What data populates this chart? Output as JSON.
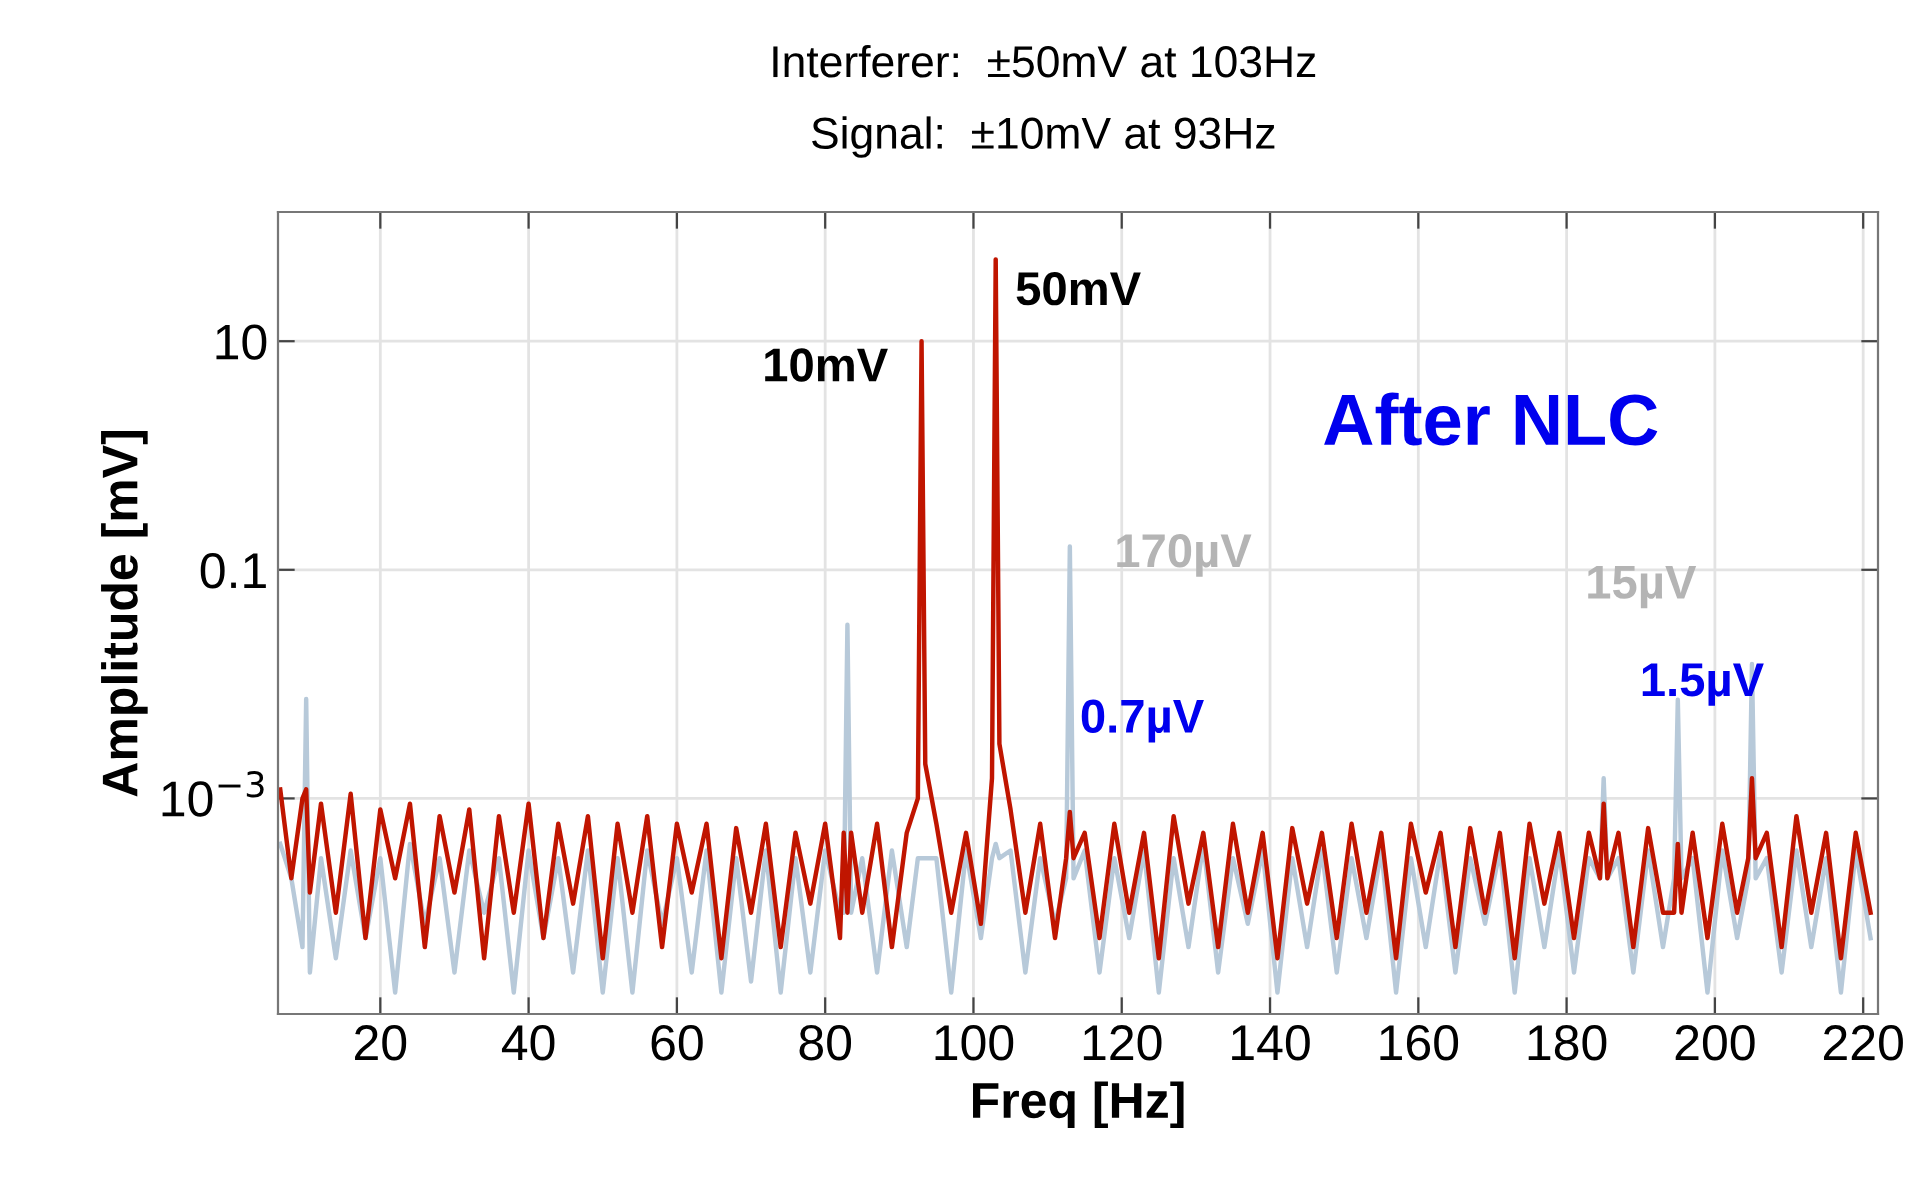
{
  "chart_data": {
    "type": "line",
    "title": "Interferer:  ±50mV at 103Hz",
    "subtitle": "Signal:  ±10mV at 93Hz",
    "xlabel": "Freq [Hz]",
    "ylabel": "Amplitude [mV]",
    "x": [
      6.5,
      8,
      9.5,
      10,
      10.5,
      12,
      14,
      16,
      18,
      20,
      22,
      24,
      26,
      28,
      30,
      32,
      34,
      36,
      38,
      40,
      42,
      44,
      46,
      48,
      50,
      52,
      54,
      56,
      58,
      60,
      62,
      64,
      66,
      68,
      70,
      72,
      74,
      76,
      78,
      80,
      82,
      82.5,
      83,
      83.5,
      85,
      87,
      89,
      91,
      92.5,
      93,
      93.5,
      95,
      97,
      99,
      101,
      102.5,
      103,
      103.5,
      105,
      107,
      109,
      111,
      112.5,
      113,
      113.5,
      115,
      117,
      119,
      121,
      123,
      125,
      127,
      129,
      131,
      133,
      135,
      137,
      139,
      141,
      143,
      145,
      147,
      149,
      151,
      153,
      155,
      157,
      159,
      161,
      163,
      165,
      167,
      169,
      171,
      173,
      175,
      177,
      179,
      181,
      183,
      184.5,
      185,
      185.5,
      187,
      189,
      191,
      193,
      194.5,
      195,
      195.5,
      197,
      199,
      201,
      203,
      204.5,
      205,
      205.5,
      207,
      209,
      211,
      213,
      215,
      217,
      219,
      221
    ],
    "series": [
      {
        "color": "#b7c9d9",
        "values": [
          0.0004,
          0.0002,
          5e-05,
          0.0074,
          3e-05,
          0.0003,
          4e-05,
          0.00035,
          6e-05,
          0.0003,
          2e-05,
          0.0004,
          8e-05,
          0.0003,
          3e-05,
          0.00035,
          0.0001,
          0.0003,
          2e-05,
          0.00035,
          6e-05,
          0.0003,
          3e-05,
          0.00035,
          2e-05,
          0.0003,
          2e-05,
          0.00035,
          8e-05,
          0.0003,
          3e-05,
          0.00035,
          2e-05,
          0.0003,
          2.5e-05,
          0.00035,
          2e-05,
          0.0003,
          3e-05,
          0.00035,
          0.0001,
          0.0001,
          0.033,
          0.0001,
          0.0003,
          3e-05,
          0.00035,
          5e-05,
          0.0003,
          0.0003,
          0.0003,
          0.0003,
          2e-05,
          0.00035,
          6e-05,
          0.0003,
          0.0004,
          0.0003,
          0.00035,
          3e-05,
          0.0003,
          8e-05,
          0.0002,
          0.16,
          0.0002,
          0.00035,
          3e-05,
          0.0003,
          6e-05,
          0.00035,
          2e-05,
          0.0003,
          5e-05,
          0.0004,
          3e-05,
          0.0003,
          8e-05,
          0.00035,
          2e-05,
          0.0003,
          5e-05,
          0.00035,
          3e-05,
          0.0003,
          6e-05,
          0.00035,
          2e-05,
          0.0003,
          5e-05,
          0.00035,
          3e-05,
          0.0003,
          8e-05,
          0.00035,
          2e-05,
          0.0003,
          5e-05,
          0.00035,
          3e-05,
          0.0003,
          0.0002,
          0.0015,
          0.0002,
          0.0003,
          3e-05,
          0.00035,
          5e-05,
          0.0002,
          0.0073,
          0.0002,
          0.0003,
          2e-05,
          0.00035,
          6e-05,
          0.0002,
          0.015,
          0.0002,
          0.0003,
          3e-05,
          0.00035,
          5e-05,
          0.0003,
          2e-05,
          0.00035,
          6e-05
        ]
      },
      {
        "color": "#c01500",
        "values": [
          0.0012,
          0.0002,
          0.001,
          0.0012,
          0.00015,
          0.0009,
          0.0001,
          0.0011,
          6e-05,
          0.0008,
          0.0002,
          0.0009,
          5e-05,
          0.0007,
          0.00015,
          0.0008,
          4e-05,
          0.0007,
          0.0001,
          0.0009,
          6e-05,
          0.0006,
          0.00012,
          0.0007,
          4e-05,
          0.0006,
          0.0001,
          0.0007,
          5e-05,
          0.0006,
          0.00015,
          0.0006,
          4e-05,
          0.00055,
          0.0001,
          0.0006,
          5e-05,
          0.0005,
          0.00012,
          0.0006,
          6e-05,
          0.0005,
          0.0001,
          0.0005,
          0.0001,
          0.0006,
          5e-05,
          0.0005,
          0.001,
          10,
          0.002,
          0.0006,
          0.0001,
          0.0005,
          8e-05,
          0.0015,
          52,
          0.003,
          0.0008,
          0.0001,
          0.0006,
          6e-05,
          0.0003,
          0.00076,
          0.0003,
          0.0005,
          6e-05,
          0.0006,
          0.0001,
          0.0005,
          4e-05,
          0.0007,
          0.00012,
          0.0005,
          5e-05,
          0.0006,
          0.0001,
          0.0005,
          4e-05,
          0.00055,
          0.00012,
          0.0005,
          6e-05,
          0.0006,
          0.0001,
          0.0005,
          4e-05,
          0.0006,
          0.00015,
          0.0005,
          5e-05,
          0.00055,
          0.0001,
          0.0005,
          4e-05,
          0.0006,
          0.00012,
          0.0005,
          6e-05,
          0.0005,
          0.0002,
          0.0009,
          0.0002,
          0.0005,
          5e-05,
          0.00055,
          0.0001,
          0.0001,
          0.0004,
          0.0001,
          0.0005,
          6e-05,
          0.0006,
          0.0001,
          0.0003,
          0.0015,
          0.0003,
          0.0005,
          5e-05,
          0.0007,
          0.0001,
          0.0005,
          4e-05,
          0.0005,
          0.0001
        ]
      }
    ],
    "log": "y",
    "xlim": [
      6.2,
      222
    ],
    "xticks": [
      20,
      40,
      60,
      80,
      100,
      120,
      140,
      160,
      180,
      200,
      220
    ],
    "ylim": [
      1.3e-05,
      135
    ],
    "yticks": [
      10,
      0.1,
      {
        "value": 0.001,
        "label": "10$^{−3}$"
      }
    ],
    "grid": true,
    "annotations": [
      {
        "text": "10mV",
        "x": 93,
        "y": 10
      },
      {
        "text": "50mV",
        "x": 103,
        "y": 52
      },
      {
        "text": "170µV",
        "x": 113,
        "y": 0.16
      },
      {
        "text": "0.7µV",
        "x": 113,
        "y": 0.00076
      },
      {
        "text": "15µV",
        "x": 205,
        "y": 0.015
      },
      {
        "text": "1.5µV",
        "x": 205,
        "y": 0.0015
      },
      "After NLC"
    ]
  }
}
